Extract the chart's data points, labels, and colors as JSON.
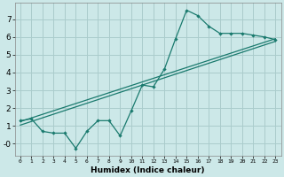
{
  "xlabel": "Humidex (Indice chaleur)",
  "bg_color": "#cce8e8",
  "grid_color": "#aacccc",
  "line_color": "#1a7a6e",
  "xlim": [
    -0.5,
    23.5
  ],
  "ylim": [
    -0.65,
    7.9
  ],
  "xticks": [
    0,
    1,
    2,
    3,
    4,
    5,
    6,
    7,
    8,
    9,
    10,
    11,
    12,
    13,
    14,
    15,
    16,
    17,
    18,
    19,
    20,
    21,
    22,
    23
  ],
  "yticks": [
    0,
    1,
    2,
    3,
    4,
    5,
    6,
    7
  ],
  "ytick_labels": [
    "-0",
    "1",
    "2",
    "3",
    "4",
    "5",
    "6",
    "7"
  ],
  "data_x": [
    0,
    1,
    2,
    3,
    4,
    5,
    6,
    7,
    8,
    9,
    10,
    11,
    12,
    13,
    14,
    15,
    16,
    17,
    18,
    19,
    20,
    21,
    22,
    23
  ],
  "data_y": [
    1.3,
    1.4,
    0.7,
    0.6,
    0.6,
    -0.25,
    0.7,
    1.3,
    1.3,
    0.45,
    1.85,
    3.3,
    3.2,
    4.2,
    5.9,
    7.5,
    7.2,
    6.6,
    6.2,
    6.2,
    6.2,
    6.1,
    6.0,
    5.85
  ],
  "trend1_x": [
    0,
    23
  ],
  "trend1_y": [
    1.25,
    5.9
  ],
  "trend2_x": [
    0,
    23
  ],
  "trend2_y": [
    1.05,
    5.75
  ]
}
